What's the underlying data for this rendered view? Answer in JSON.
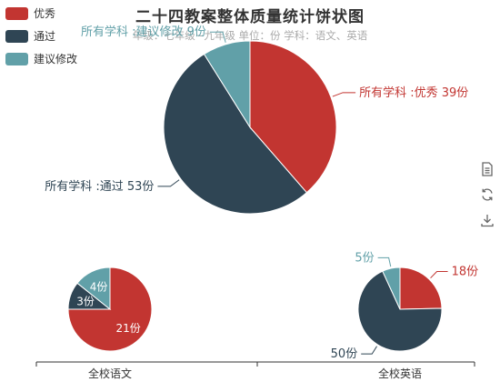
{
  "chart_data": {
    "type": "pie",
    "title": "二十四教案整体质量统计饼状图",
    "subtitle": "年级：七年级~九年级    单位：份    学科：语文、英语",
    "legend": {
      "placement": "top-left",
      "items": [
        {
          "label": "优秀",
          "color": "#c23531"
        },
        {
          "label": "通过",
          "color": "#2f4554"
        },
        {
          "label": "建议修改",
          "color": "#61a0a8"
        }
      ]
    },
    "pies": [
      {
        "name": "所有学科",
        "slices": [
          {
            "label": "优秀",
            "value": 39,
            "text": "所有学科 :优秀 39份"
          },
          {
            "label": "通过",
            "value": 53,
            "text": "所有学科 :通过 53份"
          },
          {
            "label": "建议修改",
            "value": 9,
            "text": "所有学科 :建议修改 9份"
          }
        ]
      },
      {
        "name": "全校语文",
        "slices": [
          {
            "label": "优秀",
            "value": 21,
            "text": "21份"
          },
          {
            "label": "通过",
            "value": 3,
            "text": "3份"
          },
          {
            "label": "建议修改",
            "value": 4,
            "text": "4份"
          }
        ]
      },
      {
        "name": "全校英语",
        "slices": [
          {
            "label": "优秀",
            "value": 18,
            "text": "18份"
          },
          {
            "label": "通过",
            "value": 50,
            "text": "50份"
          },
          {
            "label": "建议修改",
            "value": 5,
            "text": "5份"
          }
        ]
      }
    ],
    "xaxis": {
      "categories": [
        "全校语文",
        "全校英语"
      ]
    }
  },
  "toolbox": [
    {
      "name": "data-view-icon"
    },
    {
      "name": "restore-icon"
    },
    {
      "name": "save-image-icon"
    }
  ]
}
